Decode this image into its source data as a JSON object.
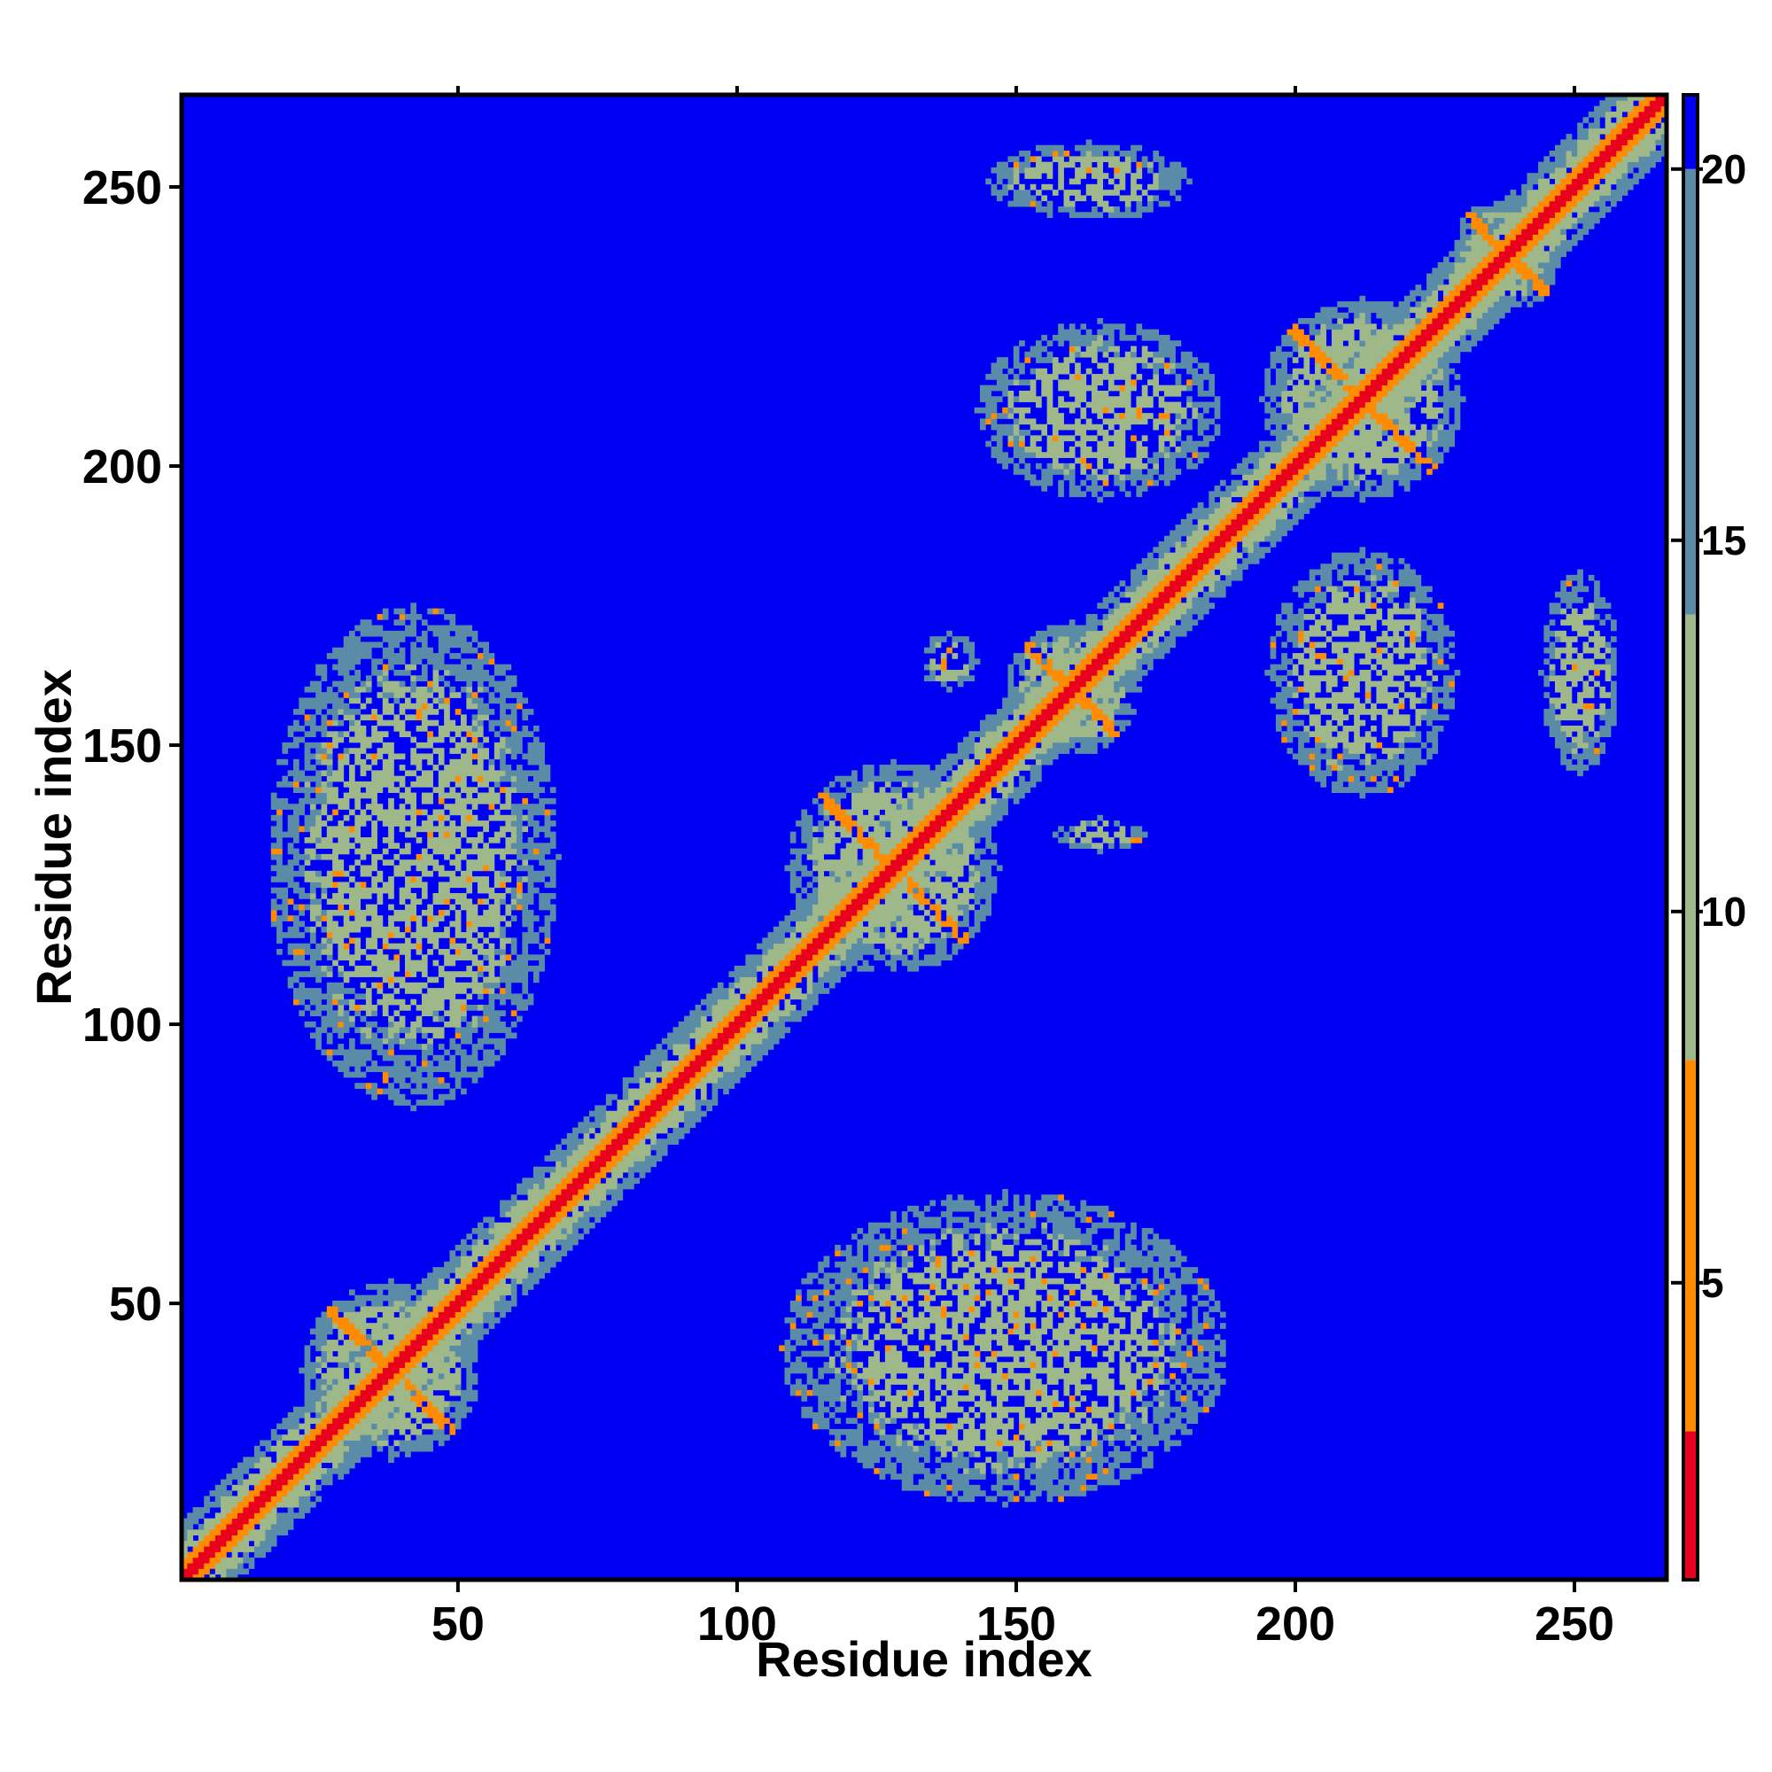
{
  "chart_data": {
    "type": "heatmap",
    "title": "",
    "xlabel": "Residue index",
    "ylabel": "Residue index",
    "xlim": [
      1,
      266
    ],
    "ylim": [
      1,
      266
    ],
    "x_ticks": [
      50,
      100,
      150,
      200,
      250
    ],
    "y_ticks": [
      50,
      100,
      150,
      200,
      250
    ],
    "colorbar": {
      "range": [
        1,
        21
      ],
      "ticks": [
        5,
        10,
        15,
        20
      ],
      "colors": {
        "near": "#e8001c",
        "close": "#ff8c00",
        "mid": "#9fb88a",
        "far": "#5a8ca8",
        "background": "#0000f4"
      }
    },
    "diagonal_band": {
      "width": 3,
      "halo": 10
    },
    "contact_patches": [
      {
        "cx": 38,
        "cy": 38,
        "rx": 16,
        "ry": 16,
        "shape": "cross"
      },
      {
        "cx": 128,
        "cy": 128,
        "rx": 19,
        "ry": 19,
        "shape": "cross"
      },
      {
        "cx": 212,
        "cy": 212,
        "rx": 18,
        "ry": 18,
        "shape": "cross"
      },
      {
        "cx": 160,
        "cy": 160,
        "rx": 12,
        "ry": 12,
        "shape": "cross"
      },
      {
        "cx": 238,
        "cy": 238,
        "rx": 10,
        "ry": 10,
        "shape": "cross"
      },
      {
        "cx": 42,
        "cy": 130,
        "rx": 26,
        "ry": 45,
        "shape": "blob"
      },
      {
        "cx": 148,
        "cy": 42,
        "rx": 40,
        "ry": 28,
        "shape": "blob"
      },
      {
        "cx": 163,
        "cy": 251,
        "rx": 18,
        "ry": 7,
        "shape": "blob"
      },
      {
        "cx": 165,
        "cy": 210,
        "rx": 22,
        "ry": 16,
        "shape": "blob"
      },
      {
        "cx": 212,
        "cy": 163,
        "rx": 17,
        "ry": 22,
        "shape": "blob"
      },
      {
        "cx": 251,
        "cy": 163,
        "rx": 7,
        "ry": 18,
        "shape": "blob"
      },
      {
        "cx": 138,
        "cy": 165,
        "rx": 5,
        "ry": 5,
        "shape": "blob"
      },
      {
        "cx": 165,
        "cy": 134,
        "rx": 8,
        "ry": 3,
        "shape": "blob"
      }
    ]
  }
}
